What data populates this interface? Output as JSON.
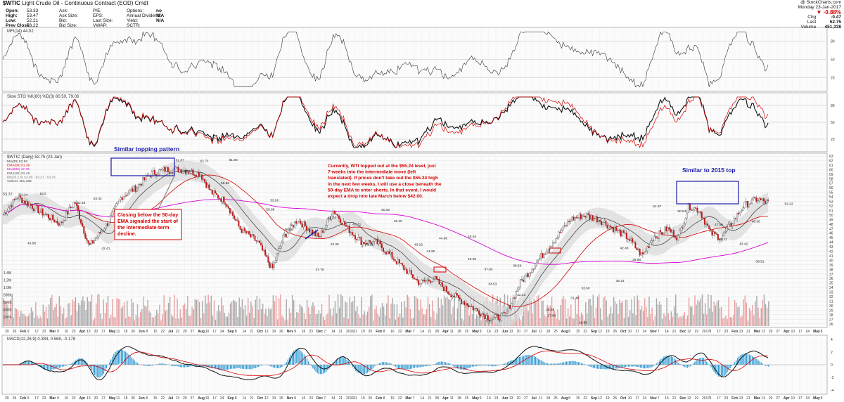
{
  "header": {
    "symbol": "$WTIC",
    "subtitle": "Light Crude Oil - Continuous Contract (EOD) Cmdt",
    "source": "@ StockCharts.com",
    "quote_left": [
      {
        "label": "Open:",
        "value": "53.33"
      },
      {
        "label": "High:",
        "value": "53.47"
      },
      {
        "label": "Low:",
        "value": "52.21"
      },
      {
        "label": "Prev Close:",
        "value": "53.22"
      }
    ],
    "quote_mid1": [
      "Ask:",
      "Ask Size:",
      "Bid:",
      "Bid Size:"
    ],
    "quote_mid2": [
      "P/E:",
      "EPS:",
      "Last Size:",
      "VWAP:"
    ],
    "quote_mid3": [
      {
        "label": "Options:",
        "value": "no"
      },
      {
        "label": "Annual Dividend:",
        "value": "N/A"
      },
      {
        "label": "Yield:",
        "value": "N/A"
      },
      {
        "label": "SCTR:",
        "value": ""
      }
    ],
    "quote_right": {
      "date": "Monday 23-Jan-2017",
      "change_pct": "-0.88%",
      "chg_label": "Chg",
      "chg": "-0.47",
      "last_label": "Last",
      "last": "52.75",
      "vol_label": "Volume",
      "vol": "451,338"
    }
  },
  "panels": {
    "mfi_label": "MFI(14) 44.02",
    "sto_label": "Slow STO %K(60) %D(3) 80.50, 79.06",
    "price_label": "$WTIC (Daily) 52.75 (23 Jan)",
    "legend": [
      {
        "text": "MA(20) 52.92",
        "color": "#333333"
      },
      {
        "text": "EMA(50) 51.39",
        "color": "#d40000"
      },
      {
        "text": "MA(200) 47.46",
        "color": "#d400d4"
      },
      {
        "text": "EMA(20) 52.45",
        "color": "#555555"
      },
      {
        "text": "BB(20,2.0) 52.00 - 53.27 - 53.76",
        "color": "#777777"
      },
      {
        "text": "Volume 451,338",
        "color": "#444444"
      }
    ],
    "macd_label": "MACD(12,26,9) 0.384, 0.568, -0.178",
    "left_price": "53.37"
  },
  "annotations": {
    "topping": "Similar topping pattern",
    "closing": [
      "Closing below the 50-day",
      "EMA signaled the start of",
      "the intermediate-term",
      "decline."
    ],
    "wti": [
      "Currently, WTI topped out at the $55.24 level, just",
      "7-weeks into the intermediate move (left",
      "translated). If prices don't take out the $55.24 high",
      "in the next few weeks, I will use a close beneath the",
      "50-day EMA to enter shorts. In that event, I would",
      "expect a drop into late March below $42.00."
    ],
    "similar2015": "Similar to 2015 top"
  },
  "chart_data": {
    "type": "line",
    "title": "$WTIC Light Crude Oil - Continuous Contract (EOD)",
    "x_ticks": [
      "20",
      "26",
      "Feb",
      "9",
      "17",
      "23",
      "Mar",
      "9",
      "16",
      "23",
      "Apr",
      "13",
      "20",
      "27",
      "May",
      "11",
      "18",
      "26",
      "Jun",
      "8",
      "15",
      "22",
      "Jul",
      "13",
      "20",
      "27",
      "Aug",
      "10",
      "17",
      "24",
      "Sep",
      "8",
      "14",
      "21",
      "Oct",
      "12",
      "19",
      "26",
      "Nov",
      "9",
      "16",
      "23",
      "Dec",
      "7",
      "14",
      "21",
      "2016",
      "11",
      "19",
      "25",
      "Feb",
      "8",
      "16",
      "22",
      "Mar",
      "7",
      "14",
      "21",
      "28",
      "Apr",
      "11",
      "18",
      "25",
      "May",
      "9",
      "16",
      "23",
      "Jun",
      "13",
      "20",
      "27",
      "Jul",
      "11",
      "18",
      "25",
      "Aug",
      "8",
      "15",
      "22",
      "Sep",
      "12",
      "19",
      "26",
      "Oct",
      "10",
      "17",
      "24",
      "Nov",
      "7",
      "14",
      "21",
      "Dec",
      "12",
      "19",
      "2017",
      "9",
      "17",
      "23",
      "Feb",
      "13",
      "21",
      "Mar",
      "13",
      "20",
      "27",
      "Apr",
      "10",
      "17",
      "24",
      "May",
      "8"
    ],
    "price_ticks": [
      63,
      62,
      61,
      60,
      59,
      58,
      57,
      56,
      55,
      54,
      53,
      52,
      51,
      50,
      49,
      48,
      47,
      46,
      45,
      44,
      43,
      42,
      41,
      40,
      39,
      38,
      37,
      36,
      35,
      34,
      33,
      32,
      31,
      30,
      29,
      28,
      27,
      26
    ],
    "volume_ticks": [
      "1.4M",
      "1.2M",
      "1.0M",
      "800K",
      "600K",
      "400K",
      "200K"
    ],
    "indicator_ticks": [
      80,
      50,
      20
    ],
    "macd_ticks": [
      4,
      2,
      0,
      -2,
      -4
    ],
    "price_labels": [
      {
        "t": 0.02,
        "v": 54.24,
        "text": "54.24"
      },
      {
        "t": 0.045,
        "v": 54.5,
        "text": "54.5"
      },
      {
        "t": 0.03,
        "v": 43.58,
        "text": "43.58"
      },
      {
        "t": 0.09,
        "v": 52.48,
        "text": "52.48"
      },
      {
        "t": 0.11,
        "v": 53.42,
        "text": "53.42"
      },
      {
        "t": 0.12,
        "v": 42.41,
        "text": "42.41"
      },
      {
        "t": 0.16,
        "v": 50.09,
        "text": "50.09"
      },
      {
        "t": 0.185,
        "v": 47.85,
        "text": "47.85"
      },
      {
        "t": 0.21,
        "v": 61.87,
        "text": "61.87"
      },
      {
        "t": 0.24,
        "v": 61.71,
        "text": "61.71"
      },
      {
        "t": 0.275,
        "v": 61.9,
        "text": "61.90"
      },
      {
        "t": 0.22,
        "v": 59.42,
        "text": "59.42"
      },
      {
        "t": 0.265,
        "v": 56.83,
        "text": "56.83"
      },
      {
        "t": 0.325,
        "v": 53.0,
        "text": "53.00"
      },
      {
        "t": 0.32,
        "v": 50.98,
        "text": "50.98"
      },
      {
        "t": 0.342,
        "v": 46.58,
        "text": "46.58"
      },
      {
        "t": 0.38,
        "v": 37.75,
        "text": "37.75"
      },
      {
        "t": 0.395,
        "v": 49.2,
        "text": "49.20"
      },
      {
        "t": 0.425,
        "v": 47.71,
        "text": "47.71"
      },
      {
        "t": 0.398,
        "v": 43.3,
        "text": "43.30"
      },
      {
        "t": 0.44,
        "v": 43.21,
        "text": "43.21"
      },
      {
        "t": 0.46,
        "v": 50.92,
        "text": "50.92"
      },
      {
        "t": 0.475,
        "v": 48.46,
        "text": "48.46"
      },
      {
        "t": 0.5,
        "v": 43.22,
        "text": "43.22"
      },
      {
        "t": 0.53,
        "v": 44.66,
        "text": "44.66"
      },
      {
        "t": 0.515,
        "v": 41.8,
        "text": "41.80"
      },
      {
        "t": 0.565,
        "v": 45.04,
        "text": "45.04"
      },
      {
        "t": 0.565,
        "v": 40.06,
        "text": "40.06"
      },
      {
        "t": 0.585,
        "v": 37.83,
        "text": "37.83"
      },
      {
        "t": 0.59,
        "v": 34.53,
        "text": "34.53"
      },
      {
        "t": 0.62,
        "v": 38.59,
        "text": "38.59"
      },
      {
        "t": 0.625,
        "v": 32.13,
        "text": "32.13"
      },
      {
        "t": 0.66,
        "v": 28.93,
        "text": "28.93"
      },
      {
        "t": 0.662,
        "v": 27.56,
        "text": "27.56"
      },
      {
        "t": 0.69,
        "v": 31.48,
        "text": "31.48"
      },
      {
        "t": 0.703,
        "v": 33.6,
        "text": "33.60"
      },
      {
        "t": 0.7,
        "v": 26.05,
        "text": "26.05"
      },
      {
        "t": 0.75,
        "v": 42.49,
        "text": "42.49"
      },
      {
        "t": 0.745,
        "v": 35.24,
        "text": "35.24"
      },
      {
        "t": 0.765,
        "v": 39.88,
        "text": "39.88"
      },
      {
        "t": 0.79,
        "v": 51.67,
        "text": "51.67"
      },
      {
        "t": 0.82,
        "v": 50.64,
        "text": "50.64"
      },
      {
        "t": 0.865,
        "v": 47.65,
        "text": "47.65"
      },
      {
        "t": 0.87,
        "v": 44.42,
        "text": "44.42"
      },
      {
        "t": 0.895,
        "v": 43.42,
        "text": "43.42"
      },
      {
        "t": 0.91,
        "v": 48.36,
        "text": "48.36"
      },
      {
        "t": 0.915,
        "v": 39.51,
        "text": "39.51"
      },
      {
        "t": 0.95,
        "v": 52.22,
        "text": "52.22"
      }
    ]
  }
}
